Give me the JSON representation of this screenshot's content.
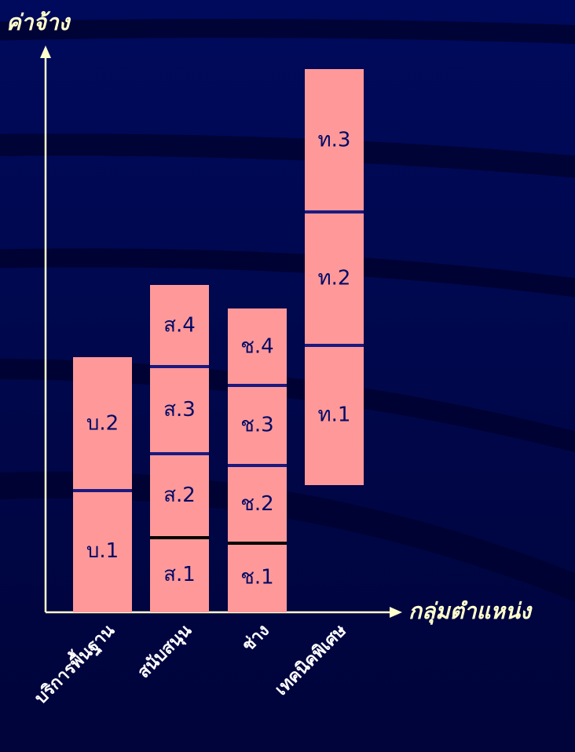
{
  "y_axis_label": "ค่าจ้าง",
  "x_axis_label": "กลุ่มตำแหน่ง",
  "groups": [
    {
      "name": "บริการพื้นฐาน",
      "levels": [
        "บ.1",
        "บ.2"
      ]
    },
    {
      "name": "สนับสนุน",
      "levels": [
        "ส.1",
        "ส.2",
        "ส.3",
        "ส.4"
      ]
    },
    {
      "name": "ช่าง",
      "levels": [
        "ช.1",
        "ช.2",
        "ช.3",
        "ช.4"
      ]
    },
    {
      "name": "เทคนิคพิเศษ",
      "levels": [
        "ท.1",
        "ท.2",
        "ท.3"
      ]
    }
  ]
}
